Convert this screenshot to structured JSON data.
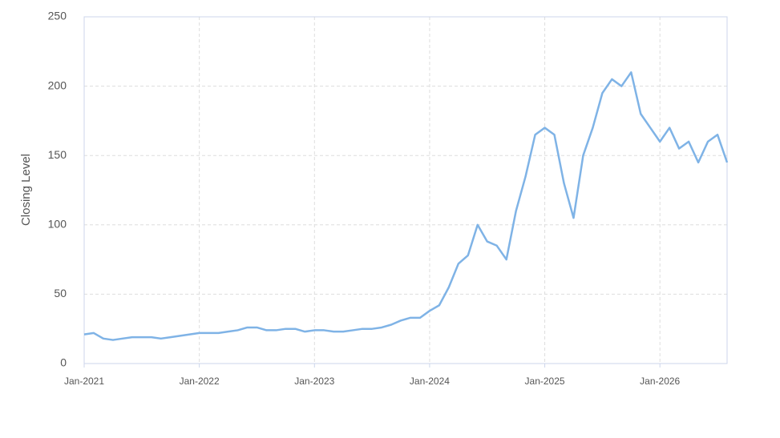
{
  "chart_data": {
    "type": "line",
    "y_label": "Closing Level",
    "x": [
      "2021-01",
      "2021-02",
      "2021-03",
      "2021-04",
      "2021-05",
      "2021-06",
      "2021-07",
      "2021-08",
      "2021-09",
      "2021-10",
      "2021-11",
      "2021-12",
      "2022-01",
      "2022-02",
      "2022-03",
      "2022-04",
      "2022-05",
      "2022-06",
      "2022-07",
      "2022-08",
      "2022-09",
      "2022-10",
      "2022-11",
      "2022-12",
      "2023-01",
      "2023-02",
      "2023-03",
      "2023-04",
      "2023-05",
      "2023-06",
      "2023-07",
      "2023-08",
      "2023-09",
      "2023-10",
      "2023-11",
      "2023-12",
      "2024-01",
      "2024-02",
      "2024-03",
      "2024-04",
      "2024-05",
      "2024-06",
      "2024-07",
      "2024-08",
      "2024-09",
      "2024-10",
      "2024-11",
      "2024-12",
      "2025-01",
      "2025-02",
      "2025-03",
      "2025-04",
      "2025-05",
      "2025-06",
      "2025-07",
      "2025-08",
      "2025-09",
      "2025-10",
      "2025-11",
      "2025-12",
      "2026-01",
      "2026-02",
      "2026-03",
      "2026-04",
      "2026-05",
      "2026-06",
      "2026-07",
      "2026-08"
    ],
    "series": [
      {
        "color": "#7fb3e6",
        "values": [
          21,
          22,
          18,
          17,
          18,
          19,
          19,
          19,
          18,
          19,
          20,
          21,
          22,
          22,
          22,
          23,
          24,
          26,
          26,
          24,
          24,
          25,
          25,
          23,
          24,
          24,
          23,
          23,
          24,
          25,
          25,
          26,
          28,
          31,
          33,
          33,
          38,
          42,
          55,
          72,
          78,
          100,
          88,
          85,
          75,
          110,
          135,
          165,
          170,
          165,
          130,
          105,
          150,
          170,
          195,
          205,
          200,
          210,
          180,
          170,
          160,
          170,
          155,
          160,
          145,
          160,
          165,
          145
        ]
      }
    ],
    "xlim": [
      "2021-01",
      "2026-08"
    ],
    "xticks": [
      {
        "value": "2021-01",
        "label": "Jan-2021"
      },
      {
        "value": "2022-01",
        "label": "Jan-2022"
      },
      {
        "value": "2023-01",
        "label": "Jan-2023"
      },
      {
        "value": "2024-01",
        "label": "Jan-2024"
      },
      {
        "value": "2025-01",
        "label": "Jan-2025"
      },
      {
        "value": "2026-01",
        "label": "Jan-2026"
      }
    ],
    "ylim": [
      0,
      250
    ],
    "yticks": [
      0,
      50,
      100,
      150,
      200,
      250
    ],
    "grid": true
  }
}
